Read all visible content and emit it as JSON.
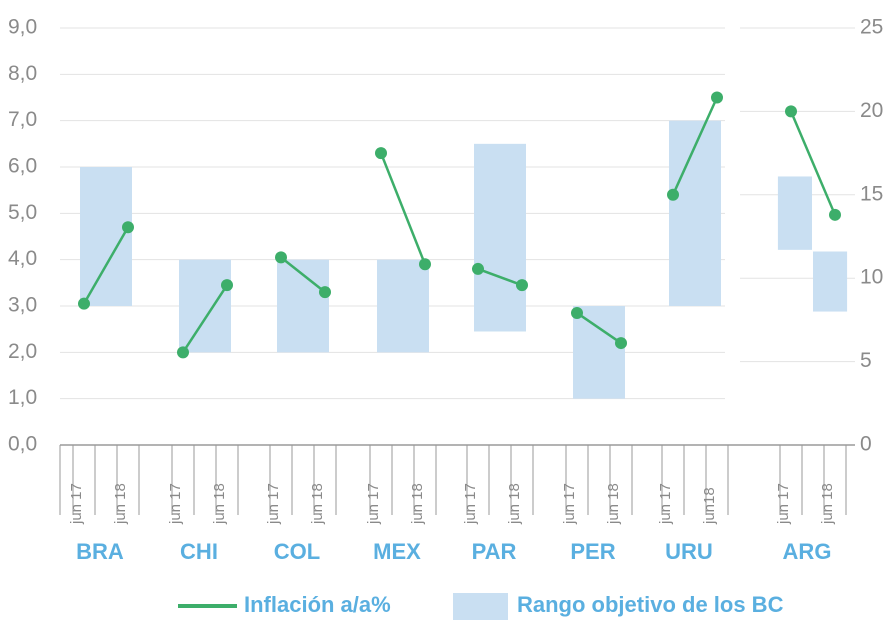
{
  "chart_data": {
    "type": "range_line",
    "series": [
      {
        "name": "Inflación a/a%",
        "color": "#3dae6a"
      },
      {
        "name": "Rango objetivo de los BC",
        "color": "#c9dff2"
      }
    ],
    "groups": [
      {
        "name": "BRA",
        "periods": [
          "jun 17",
          "jun 18"
        ],
        "inflation": [
          3.05,
          4.7
        ],
        "ranges": [
          [
            3,
            6
          ]
        ]
      },
      {
        "name": "CHI",
        "periods": [
          "jun 17",
          "jun 18"
        ],
        "inflation": [
          2.0,
          3.45
        ],
        "ranges": [
          [
            2,
            4
          ]
        ]
      },
      {
        "name": "COL",
        "periods": [
          "jun 17",
          "jun 18"
        ],
        "inflation": [
          4.05,
          3.3
        ],
        "ranges": [
          [
            2,
            4
          ]
        ]
      },
      {
        "name": "MEX",
        "periods": [
          "jun 17",
          "jun 18"
        ],
        "inflation": [
          6.3,
          3.9
        ],
        "ranges": [
          [
            2,
            4
          ]
        ]
      },
      {
        "name": "PAR",
        "periods": [
          "jun 17",
          "jun 18"
        ],
        "inflation": [
          3.8,
          3.45
        ],
        "ranges": [
          [
            2.45,
            6.5
          ]
        ]
      },
      {
        "name": "PER",
        "periods": [
          "jun 17",
          "jun 18"
        ],
        "inflation": [
          2.85,
          2.2
        ],
        "ranges": [
          [
            1,
            3
          ]
        ]
      },
      {
        "name": "URU",
        "periods": [
          "jun 17",
          "jun18"
        ],
        "inflation": [
          5.4,
          7.5
        ],
        "ranges": [
          [
            3,
            7
          ]
        ]
      },
      {
        "name": "ARG",
        "periods": [
          "jun 17",
          "jun 18"
        ],
        "inflation": [
          20,
          13.8
        ],
        "ranges": [
          [
            11.7,
            16.1
          ],
          [
            8,
            11.6
          ]
        ],
        "axis": "y2"
      }
    ],
    "ylim": [
      0,
      9
    ],
    "yticks": [
      {
        "value": 0,
        "label": "0,0"
      },
      {
        "value": 1,
        "label": "1,0"
      },
      {
        "value": 2,
        "label": "2,0"
      },
      {
        "value": 3,
        "label": "3,0"
      },
      {
        "value": 4,
        "label": "4,0"
      },
      {
        "value": 5,
        "label": "5,0"
      },
      {
        "value": 6,
        "label": "6,0"
      },
      {
        "value": 7,
        "label": "7,0"
      },
      {
        "value": 8,
        "label": "8,0"
      },
      {
        "value": 9,
        "label": "9,0"
      }
    ],
    "y2lim": [
      0,
      25
    ],
    "y2ticks": [
      0,
      5,
      10,
      15,
      20,
      25
    ],
    "grid": true
  }
}
